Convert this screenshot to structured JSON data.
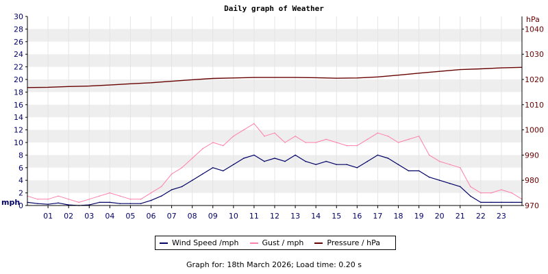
{
  "title": "Daily graph of Weather",
  "footer": "Graph for: 18th March 2026; Load time: 0.20 s",
  "colors": {
    "wind": "#000066",
    "gust": "#ff7fa8",
    "pressure": "#660000",
    "left_axis_text": "#000066",
    "right_axis_text": "#660000",
    "band": "#eeeeee"
  },
  "chart_data": {
    "type": "line",
    "title": "Daily graph of Weather",
    "x_ticks": [
      "01",
      "02",
      "03",
      "04",
      "05",
      "06",
      "07",
      "08",
      "09",
      "10",
      "11",
      "12",
      "13",
      "14",
      "15",
      "16",
      "17",
      "18",
      "19",
      "20",
      "21",
      "22",
      "23"
    ],
    "xlim": [
      0,
      24
    ],
    "left_axis": {
      "unit": "mph",
      "ticks": [
        "0",
        "2",
        "4",
        "6",
        "8",
        "10",
        "12",
        "14",
        "16",
        "18",
        "20",
        "22",
        "24",
        "26",
        "28",
        "30"
      ],
      "ylim": [
        0,
        30
      ]
    },
    "right_axis": {
      "unit": "hPa",
      "ticks": [
        "970",
        "980",
        "990",
        "1000",
        "1010",
        "1020",
        "1030",
        "1040"
      ],
      "ylim": [
        970,
        1045
      ]
    },
    "grid": "horizontal bands",
    "legend_position": "bottom",
    "series": [
      {
        "name": "Wind Speed /mph",
        "axis": "left",
        "x": [
          0,
          0.5,
          1,
          1.5,
          2,
          2.5,
          3,
          3.5,
          4,
          4.5,
          5,
          5.5,
          6,
          6.5,
          7,
          7.5,
          8,
          8.5,
          9,
          9.5,
          10,
          10.5,
          11,
          11.5,
          12,
          12.5,
          13,
          13.5,
          14,
          14.5,
          15,
          15.5,
          16,
          16.5,
          17,
          17.5,
          18,
          18.5,
          19,
          19.5,
          20,
          20.5,
          21,
          21.5,
          22,
          22.5,
          23,
          23.5,
          24
        ],
        "values": [
          0.5,
          0.3,
          0.2,
          0.4,
          0.1,
          0,
          0.1,
          0.5,
          0.5,
          0.3,
          0.3,
          0.3,
          0.8,
          1.5,
          2.5,
          3,
          4,
          5,
          6,
          5.5,
          6.5,
          7.5,
          8,
          7,
          7.5,
          7,
          8,
          7,
          6.5,
          7,
          6.5,
          6.5,
          6,
          7,
          8,
          7.5,
          6.5,
          5.5,
          5.5,
          4.5,
          4,
          3.5,
          3,
          1.5,
          0.5,
          0.5,
          0.5,
          0.5,
          0.5
        ]
      },
      {
        "name": "Gust / mph",
        "axis": "left",
        "x": [
          0,
          0.5,
          1,
          1.5,
          2,
          2.5,
          3,
          3.5,
          4,
          4.5,
          5,
          5.5,
          6,
          6.5,
          7,
          7.5,
          8,
          8.5,
          9,
          9.5,
          10,
          10.5,
          11,
          11.5,
          12,
          12.5,
          13,
          13.5,
          14,
          14.5,
          15,
          15.5,
          16,
          16.5,
          17,
          17.5,
          18,
          18.5,
          19,
          19.5,
          20,
          20.5,
          21,
          21.5,
          22,
          22.5,
          23,
          23.5,
          24
        ],
        "values": [
          1.5,
          1,
          1,
          1.5,
          1,
          0.5,
          1,
          1.5,
          2,
          1.5,
          1,
          1,
          2,
          3,
          5,
          6,
          7.5,
          9,
          10,
          9.5,
          11,
          12,
          13,
          11,
          11.5,
          10,
          11,
          10,
          10,
          10.5,
          10,
          9.5,
          9.5,
          10.5,
          11.5,
          11,
          10,
          10.5,
          11,
          8,
          7,
          6.5,
          6,
          3,
          2,
          2,
          2.5,
          2,
          1
        ]
      },
      {
        "name": "Pressure / hPa",
        "axis": "right",
        "x": [
          0,
          1,
          2,
          3,
          4,
          5,
          6,
          7,
          8,
          9,
          10,
          11,
          12,
          13,
          14,
          15,
          16,
          17,
          18,
          19,
          20,
          21,
          22,
          23,
          24
        ],
        "values": [
          1016.8,
          1016.9,
          1017.2,
          1017.4,
          1017.8,
          1018.3,
          1018.7,
          1019.3,
          1019.9,
          1020.4,
          1020.6,
          1020.8,
          1020.8,
          1020.8,
          1020.7,
          1020.5,
          1020.6,
          1021.0,
          1021.7,
          1022.5,
          1023.2,
          1023.9,
          1024.2,
          1024.6,
          1024.8
        ]
      }
    ]
  },
  "legend": [
    {
      "label": "Wind Speed /mph",
      "color_key": "wind"
    },
    {
      "label": "Gust / mph",
      "color_key": "gust"
    },
    {
      "label": "Pressure / hPa",
      "color_key": "pressure"
    }
  ]
}
